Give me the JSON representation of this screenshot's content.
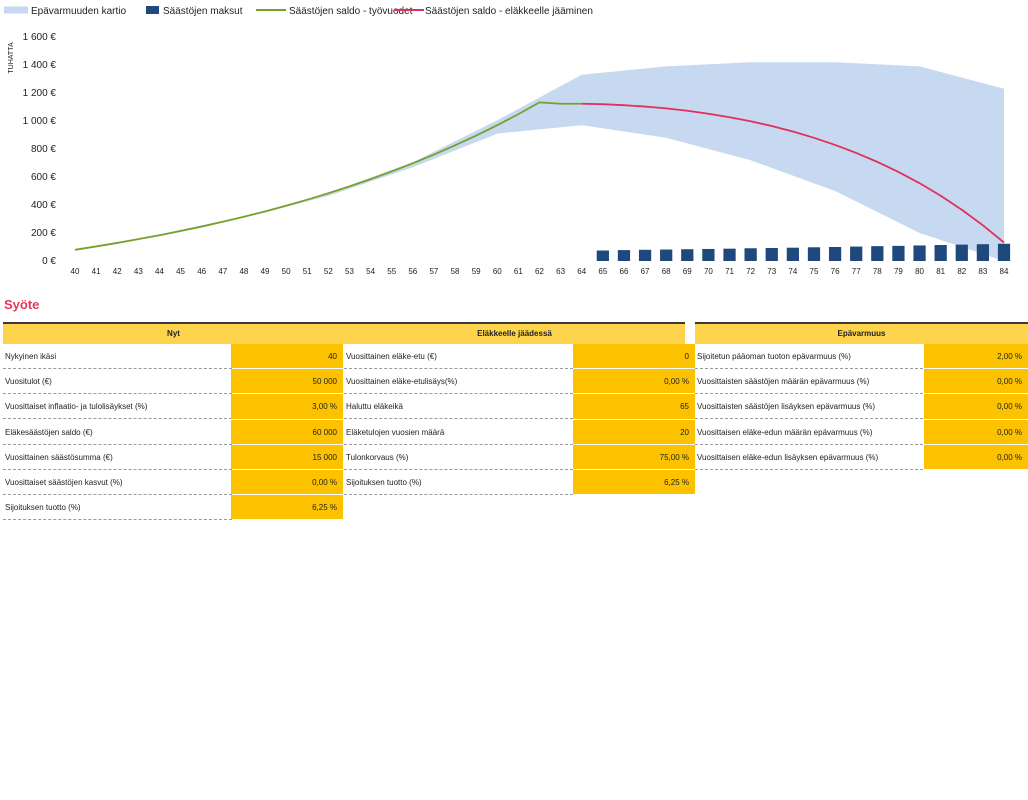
{
  "chart_data": {
    "type": "line",
    "ylabel": "TUHATTA",
    "x": [
      40,
      41,
      42,
      43,
      44,
      45,
      46,
      47,
      48,
      49,
      50,
      51,
      52,
      53,
      54,
      55,
      56,
      57,
      58,
      59,
      60,
      61,
      62,
      63,
      64,
      65,
      66,
      67,
      68,
      69,
      70,
      71,
      72,
      73,
      74,
      75,
      76,
      77,
      78,
      79,
      80,
      81,
      82,
      83,
      84
    ],
    "ylim": [
      0,
      1600
    ],
    "yticks": [
      "0 €",
      "200 €",
      "400 €",
      "600 €",
      "800 €",
      "1 000 €",
      "1 200 €",
      "1 400 €",
      "1 600 €"
    ],
    "ytick_values": [
      0,
      200,
      400,
      600,
      800,
      1000,
      1200,
      1400,
      1600
    ],
    "legend": [
      {
        "name": "Epävarmuuden kartio",
        "color": "#c6d9f0"
      },
      {
        "name": "Säästöjen maksut",
        "color": "#1f497d"
      },
      {
        "name": "Säästöjen saldo - työvuodet",
        "color": "#76a12b"
      },
      {
        "name": "Säästöjen saldo - eläkkeelle jääminen",
        "color": "#e0305d"
      }
    ],
    "series": [
      {
        "name": "Säästöjen saldo - työvuodet",
        "color": "#76a12b",
        "x": [
          40,
          41,
          42,
          43,
          44,
          45,
          46,
          47,
          48,
          49,
          50,
          51,
          52,
          53,
          54,
          55,
          56,
          57,
          58,
          59,
          60,
          61,
          62,
          63,
          64
        ],
        "values": [
          80,
          104,
          129,
          156,
          184,
          214,
          246,
          280,
          316,
          354,
          395,
          438,
          484,
          533,
          585,
          640,
          698,
          760,
          826,
          896,
          970,
          1049,
          1133,
          1123,
          1123
        ]
      },
      {
        "name": "Säästöjen saldo - eläkkeelle jääminen",
        "color": "#e0305d",
        "x": [
          64,
          65,
          66,
          67,
          68,
          69,
          70,
          71,
          72,
          73,
          74,
          75,
          76,
          77,
          78,
          79,
          80,
          81,
          82,
          83,
          84
        ],
        "values": [
          1123,
          1120,
          1113,
          1103,
          1090,
          1073,
          1052,
          1027,
          998,
          964,
          925,
          880,
          829,
          772,
          708,
          636,
          556,
          466,
          366,
          255,
          132
        ]
      },
      {
        "name": "Säästöjen maksut",
        "color": "#1f497d",
        "x": [
          65,
          66,
          67,
          68,
          69,
          70,
          71,
          72,
          73,
          74,
          75,
          76,
          77,
          78,
          79,
          80,
          81,
          82,
          83,
          84
        ],
        "values": [
          75,
          78,
          80,
          82,
          84,
          86,
          88,
          91,
          93,
          95,
          98,
          100,
          103,
          106,
          108,
          111,
          114,
          117,
          120,
          123
        ]
      },
      {
        "name": "Epävarmuuden kartio",
        "color": "#c6d9f0",
        "x": [
          40,
          44,
          48,
          52,
          56,
          60,
          64,
          68,
          72,
          76,
          80,
          84
        ],
        "upper": [
          80,
          190,
          320,
          485,
          705,
          1005,
          1330,
          1390,
          1420,
          1420,
          1390,
          1230
        ],
        "lower": [
          80,
          180,
          310,
          465,
          670,
          910,
          970,
          880,
          720,
          500,
          200,
          0
        ]
      }
    ]
  },
  "section_title": "Syöte",
  "tables": {
    "nyt": {
      "header": "Nyt",
      "rows": [
        {
          "label": "Nykyinen ikäsi",
          "value": "40"
        },
        {
          "label": "Vuositulot (€)",
          "value": "50 000"
        },
        {
          "label": "Vuosittaiset inflaatio- ja tulolisäykset (%)",
          "value": "3,00 %"
        },
        {
          "label": "Eläkesäästöjen saldo (€)",
          "value": "60 000"
        },
        {
          "label": "Vuosittainen säästösumma (€)",
          "value": "15 000"
        },
        {
          "label": "Vuosittaiset säästöjen kasvut (%)",
          "value": "0,00 %"
        },
        {
          "label": "Sijoituksen tuotto (%)",
          "value": "6,25 %"
        }
      ]
    },
    "elakkeelle": {
      "header": "Eläkkeelle jäädessä",
      "rows": [
        {
          "label": "Vuosittainen eläke-etu (€)",
          "value": "0"
        },
        {
          "label": "Vuosittainen eläke-etulisäys(%)",
          "value": "0,00 %"
        },
        {
          "label": "Haluttu eläkeikä",
          "value": "65"
        },
        {
          "label": "Eläketulojen vuosien määrä",
          "value": "20"
        },
        {
          "label": "Tulonkorvaus (%)",
          "value": "75,00 %"
        },
        {
          "label": "Sijoituksen tuotto (%)",
          "value": "6,25 %"
        }
      ]
    },
    "epavarmuus": {
      "header": "Epävarmuus",
      "rows": [
        {
          "label": "Sijoitetun pääoman tuoton epävarmuus (%)",
          "value": "2,00 %"
        },
        {
          "label": "Vuosittaisten säästöjen määrän epävarmuus (%)",
          "value": "0,00 %"
        },
        {
          "label": "Vuosittaisten säästöjen lisäyksen epävarmuus (%)",
          "value": "0,00 %"
        },
        {
          "label": "Vuosittaisen eläke-edun määrän epävarmuus (%)",
          "value": "0,00 %"
        },
        {
          "label": "Vuosittaisen eläke-edun lisäyksen epävarmuus (%)",
          "value": "0,00 %"
        }
      ]
    }
  }
}
